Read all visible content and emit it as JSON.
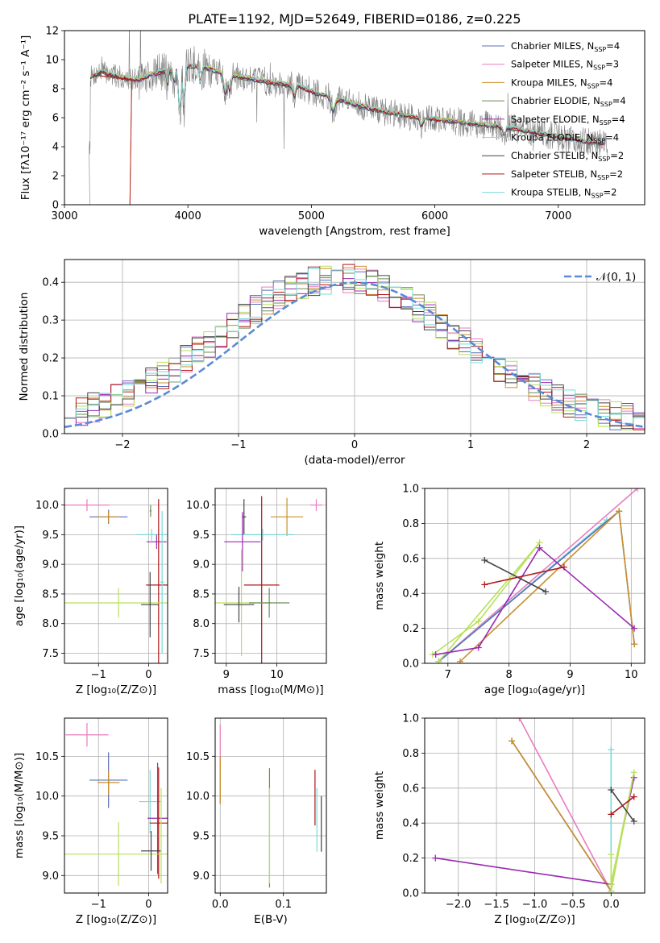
{
  "figure": {
    "title": "PLATE=1192, MJD=52649, FIBERID=0186, z=0.225"
  },
  "series": [
    {
      "key": "chab_miles",
      "name": "Chabrier MILES, N",
      "nssp": "4",
      "color": "#5a6fb8"
    },
    {
      "key": "salp_miles",
      "name": "Salpeter MILES, N",
      "nssp": "3",
      "color": "#e87cc0"
    },
    {
      "key": "krou_miles",
      "name": "Kroupa MILES, N",
      "nssp": "4",
      "color": "#c8902a"
    },
    {
      "key": "chab_elodie",
      "name": "Chabrier ELODIE, N",
      "nssp": "4",
      "color": "#6a8c5a"
    },
    {
      "key": "salp_elodie",
      "name": "Salpeter ELODIE, N",
      "nssp": "4",
      "color": "#9a2ab0"
    },
    {
      "key": "krou_elodie",
      "name": "Kroupa ELODIE, N",
      "nssp": "4",
      "color": "#b8e05a"
    },
    {
      "key": "chab_stelib",
      "name": "Chabrier STELIB, N",
      "nssp": "2",
      "color": "#444444"
    },
    {
      "key": "salp_stelib",
      "name": "Salpeter STELIB, N",
      "nssp": "2",
      "color": "#b01818"
    },
    {
      "key": "krou_stelib",
      "name": "Kroupa STELIB, N",
      "nssp": "2",
      "color": "#7adada"
    }
  ],
  "chart_data": [
    {
      "id": "spectrum",
      "type": "line",
      "xlabel": "wavelength [Angstrom, rest frame]",
      "ylabel": "Flux [fλ10⁻¹⁷ erg cm⁻² s⁻¹ A⁻¹]",
      "xlim": [
        3000,
        7700
      ],
      "ylim": [
        0,
        12
      ],
      "xticks": [
        3000,
        4000,
        5000,
        6000,
        7000
      ],
      "yticks": [
        0,
        2,
        4,
        6,
        8,
        10,
        12
      ],
      "data_color": "#808080",
      "data_range": [
        3200,
        7400
      ],
      "model_points": [
        [
          3210,
          8.8
        ],
        [
          3300,
          9.2
        ],
        [
          3400,
          8.9
        ],
        [
          3500,
          8.7
        ],
        [
          3600,
          8.6
        ],
        [
          3700,
          9.0
        ],
        [
          3800,
          9.2
        ],
        [
          3900,
          9.4
        ],
        [
          4000,
          9.6
        ],
        [
          4100,
          9.5
        ],
        [
          4200,
          9.3
        ],
        [
          4300,
          9.0
        ],
        [
          4500,
          8.7
        ],
        [
          4700,
          8.4
        ],
        [
          4900,
          8.2
        ],
        [
          5000,
          7.8
        ],
        [
          5200,
          7.3
        ],
        [
          5400,
          6.8
        ],
        [
          5600,
          6.4
        ],
        [
          5800,
          6.1
        ],
        [
          6000,
          5.9
        ],
        [
          6200,
          5.7
        ],
        [
          6400,
          5.5
        ],
        [
          6600,
          5.3
        ],
        [
          6800,
          5.0
        ],
        [
          7000,
          4.7
        ],
        [
          7200,
          4.4
        ],
        [
          7400,
          4.2
        ]
      ]
    },
    {
      "id": "residuals",
      "type": "histogram",
      "xlabel": "(data-model)/error",
      "ylabel": "Normed distribution",
      "xlim": [
        -2.5,
        2.5
      ],
      "ylim": [
        0,
        0.46
      ],
      "xticks": [
        -2,
        -1,
        0,
        1,
        2
      ],
      "yticks": [
        0.0,
        0.1,
        0.2,
        0.3,
        0.4
      ],
      "reference_label": "𝒩(0, 1)",
      "reference_color": "#5b8bd6"
    },
    {
      "id": "age_vs_Z",
      "type": "errorbar",
      "xlabel": "Z [log₁₀(Z/Z⊙)]",
      "ylabel": "age  [log₁₀(age/yr)]",
      "xlim": [
        -1.68,
        0.38
      ],
      "ylim": [
        7.33,
        10.28
      ],
      "xticks": [
        -1,
        0
      ],
      "yticks": [
        7.5,
        8.0,
        8.5,
        9.0,
        9.5,
        10.0
      ],
      "points": [
        {
          "s": "salp_miles",
          "x": -1.23,
          "y": 10.0,
          "xe": 0.45,
          "ye": 0.1
        },
        {
          "s": "chab_miles",
          "x": -0.8,
          "y": 9.8,
          "xe": 0.38,
          "ye": 0.12
        },
        {
          "s": "krou_miles",
          "x": -0.8,
          "y": 9.8,
          "xe": 0.22,
          "ye": 0.1
        },
        {
          "s": "chab_elodie",
          "x": 0.04,
          "y": 9.9,
          "xe": 0.02,
          "ye": 0.1
        },
        {
          "s": "krou_stelib",
          "x": 0.06,
          "y": 9.5,
          "xe": 0.3,
          "ye": 0.1
        },
        {
          "s": "salp_elodie",
          "x": 0.16,
          "y": 9.38,
          "xe": 0.2,
          "ye": 0.12
        },
        {
          "s": "salp_stelib",
          "x": 0.2,
          "y": 8.65,
          "xe": 0.25,
          "ye": 1.45
        },
        {
          "s": "krou_elodie",
          "x": -0.6,
          "y": 8.35,
          "xe": 1.3,
          "ye": 0.25
        },
        {
          "s": "chab_stelib",
          "x": 0.03,
          "y": 8.32,
          "xe": 0.18,
          "ye": 0.55
        },
        {
          "s": "krou_stelib",
          "x": 0.27,
          "y": 8.7,
          "xe": 0.04,
          "ye": 1.2
        }
      ]
    },
    {
      "id": "age_vs_mass",
      "type": "errorbar",
      "xlabel": "mass [log₁₀(M/M⊙)]",
      "ylabel": "",
      "xlim": [
        8.78,
        10.98
      ],
      "ylim": [
        7.33,
        10.28
      ],
      "xticks": [
        9,
        10
      ],
      "yticks": [
        7.5,
        8.0,
        8.5,
        9.0,
        9.5,
        10.0
      ],
      "points": [
        {
          "s": "salp_miles",
          "x": 10.78,
          "y": 10.0,
          "xe": 0.12,
          "ye": 0.1
        },
        {
          "s": "krou_miles",
          "x": 10.2,
          "y": 9.8,
          "xe": 0.32,
          "ye": 0.32
        },
        {
          "s": "chab_stelib",
          "x": 9.35,
          "y": 9.8,
          "xe": 0.04,
          "ye": 0.3
        },
        {
          "s": "krou_stelib",
          "x": 9.72,
          "y": 9.5,
          "xe": 0.62,
          "ye": 0.1
        },
        {
          "s": "salp_elodie",
          "x": 9.32,
          "y": 9.38,
          "xe": 0.36,
          "ye": 0.5
        },
        {
          "s": "salp_stelib",
          "x": 9.7,
          "y": 8.65,
          "xe": 0.35,
          "ye": 1.5
        },
        {
          "s": "krou_elodie",
          "x": 9.3,
          "y": 8.35,
          "xe": 0.6,
          "ye": 0.9
        },
        {
          "s": "chab_elodie",
          "x": 9.85,
          "y": 8.35,
          "xe": 0.4,
          "ye": 0.25
        },
        {
          "s": "chab_stelib",
          "x": 9.25,
          "y": 8.32,
          "xe": 0.3,
          "ye": 0.3
        }
      ]
    },
    {
      "id": "mass_weight_vs_age",
      "type": "line",
      "xlabel": "age  [log₁₀(age/yr)]",
      "ylabel": "mass weight",
      "xlim": [
        6.62,
        10.22
      ],
      "ylim": [
        0,
        1
      ],
      "xticks": [
        7,
        8,
        9,
        10
      ],
      "yticks": [
        0.0,
        0.2,
        0.4,
        0.6,
        0.8,
        1.0
      ],
      "lines": [
        {
          "s": "salp_miles",
          "pts": [
            [
              6.85,
              0.01
            ],
            [
              10.1,
              1.0
            ]
          ]
        },
        {
          "s": "krou_stelib",
          "pts": [
            [
              6.85,
              0.01
            ],
            [
              9.6,
              0.82
            ]
          ]
        },
        {
          "s": "chab_miles",
          "pts": [
            [
              6.85,
              0.01
            ],
            [
              9.8,
              0.87
            ],
            [
              10.05,
              0.11
            ]
          ]
        },
        {
          "s": "krou_miles",
          "pts": [
            [
              7.2,
              0.01
            ],
            [
              9.8,
              0.87
            ],
            [
              10.05,
              0.11
            ]
          ]
        },
        {
          "s": "krou_elodie",
          "pts": [
            [
              6.75,
              0.05
            ],
            [
              7.5,
              0.24
            ],
            [
              8.5,
              0.69
            ],
            [
              6.85,
              0.01
            ]
          ]
        },
        {
          "s": "salp_elodie",
          "pts": [
            [
              6.8,
              0.05
            ],
            [
              7.5,
              0.09
            ],
            [
              8.5,
              0.66
            ],
            [
              10.05,
              0.2
            ]
          ]
        },
        {
          "s": "chab_stelib",
          "pts": [
            [
              7.6,
              0.59
            ],
            [
              8.6,
              0.41
            ]
          ]
        },
        {
          "s": "salp_stelib",
          "pts": [
            [
              7.6,
              0.45
            ],
            [
              8.9,
              0.55
            ]
          ]
        }
      ]
    },
    {
      "id": "mass_vs_Z",
      "type": "errorbar",
      "xlabel": "Z [log₁₀(Z/Z⊙)]",
      "ylabel": "mass [log₁₀(M/M⊙)]",
      "xlim": [
        -1.68,
        0.38
      ],
      "ylim": [
        8.78,
        10.98
      ],
      "xticks": [
        -1,
        0
      ],
      "yticks": [
        9.0,
        9.5,
        10.0,
        10.5
      ],
      "points": [
        {
          "s": "salp_miles",
          "x": -1.23,
          "y": 10.77,
          "xe": 0.43,
          "ye": 0.15
        },
        {
          "s": "chab_miles",
          "x": -0.8,
          "y": 10.2,
          "xe": 0.38,
          "ye": 0.35
        },
        {
          "s": "krou_miles",
          "x": -0.8,
          "y": 10.17,
          "xe": 0.22,
          "ye": 0.15
        },
        {
          "s": "krou_stelib",
          "x": 0.03,
          "y": 9.93,
          "xe": 0.22,
          "ye": 0.4
        },
        {
          "s": "salp_elodie",
          "x": 0.18,
          "y": 9.72,
          "xe": 0.2,
          "ye": 0.7
        },
        {
          "s": "salp_stelib",
          "x": 0.2,
          "y": 9.66,
          "xe": 0.18,
          "ye": 0.7
        },
        {
          "s": "krou_elodie",
          "x": -0.6,
          "y": 9.27,
          "xe": 1.3,
          "ye": 0.4
        },
        {
          "s": "chab_stelib",
          "x": 0.05,
          "y": 9.31,
          "xe": 0.2,
          "ye": 0.25
        },
        {
          "s": "krou_elodie",
          "x": 0.25,
          "y": 9.5,
          "xe": 0.05,
          "ye": 0.6
        }
      ]
    },
    {
      "id": "mass_vs_ebv",
      "type": "errorbar",
      "xlabel": "E(B-V)",
      "ylabel": "",
      "xlim": [
        -0.008,
        0.168
      ],
      "ylim": [
        8.78,
        10.98
      ],
      "xticks": [
        0.0,
        0.1
      ],
      "yticks": [
        9.0,
        9.5,
        10.0,
        10.5
      ],
      "points": [
        {
          "s": "salp_miles",
          "x": 0.0,
          "y": 10.4,
          "xe": 0,
          "ye": 0.5
        },
        {
          "s": "krou_miles",
          "x": 0.0,
          "y": 10.2,
          "xe": 0,
          "ye": 0.3
        },
        {
          "s": "chab_elodie",
          "x": 0.078,
          "y": 9.6,
          "xe": 0,
          "ye": 0.75
        },
        {
          "s": "krou_elodie",
          "x": 0.078,
          "y": 9.5,
          "xe": 0,
          "ye": 0.6
        },
        {
          "s": "salp_stelib",
          "x": 0.15,
          "y": 9.98,
          "xe": 0,
          "ye": 0.35
        },
        {
          "s": "krou_stelib",
          "x": 0.153,
          "y": 9.7,
          "xe": 0,
          "ye": 0.4
        },
        {
          "s": "chab_stelib",
          "x": 0.16,
          "y": 9.65,
          "xe": 0,
          "ye": 0.35
        }
      ]
    },
    {
      "id": "mass_weight_vs_Z",
      "type": "line",
      "xlabel": "Z [log₁₀(Z/Z⊙)]",
      "ylabel": "mass weight",
      "xlim": [
        -2.44,
        0.44
      ],
      "ylim": [
        0,
        1
      ],
      "xticks": [
        -2.0,
        -1.5,
        -1.0,
        -0.5,
        0.0
      ],
      "yticks": [
        0.0,
        0.2,
        0.4,
        0.6,
        0.8,
        1.0
      ],
      "lines": [
        {
          "s": "salp_miles",
          "pts": [
            [
              -1.2,
              1.0
            ],
            [
              0.0,
              0.01
            ]
          ]
        },
        {
          "s": "chab_miles",
          "pts": [
            [
              -1.3,
              0.87
            ],
            [
              0.0,
              0.01
            ]
          ]
        },
        {
          "s": "krou_miles",
          "pts": [
            [
              -1.3,
              0.87
            ],
            [
              0.0,
              0.01
            ]
          ]
        },
        {
          "s": "salp_elodie",
          "pts": [
            [
              -2.3,
              0.2
            ],
            [
              0.0,
              0.05
            ],
            [
              0.3,
              0.66
            ]
          ]
        },
        {
          "s": "krou_stelib",
          "pts": [
            [
              0.0,
              0.82
            ],
            [
              0.0,
              0.01
            ]
          ]
        },
        {
          "s": "krou_elodie",
          "pts": [
            [
              0.0,
              0.22
            ],
            [
              0.0,
              0.05
            ],
            [
              0.3,
              0.69
            ],
            [
              0.0,
              0.01
            ]
          ]
        },
        {
          "s": "chab_stelib",
          "pts": [
            [
              0.0,
              0.59
            ],
            [
              0.3,
              0.41
            ]
          ]
        },
        {
          "s": "salp_stelib",
          "pts": [
            [
              0.0,
              0.45
            ],
            [
              0.3,
              0.55
            ]
          ]
        }
      ]
    }
  ]
}
